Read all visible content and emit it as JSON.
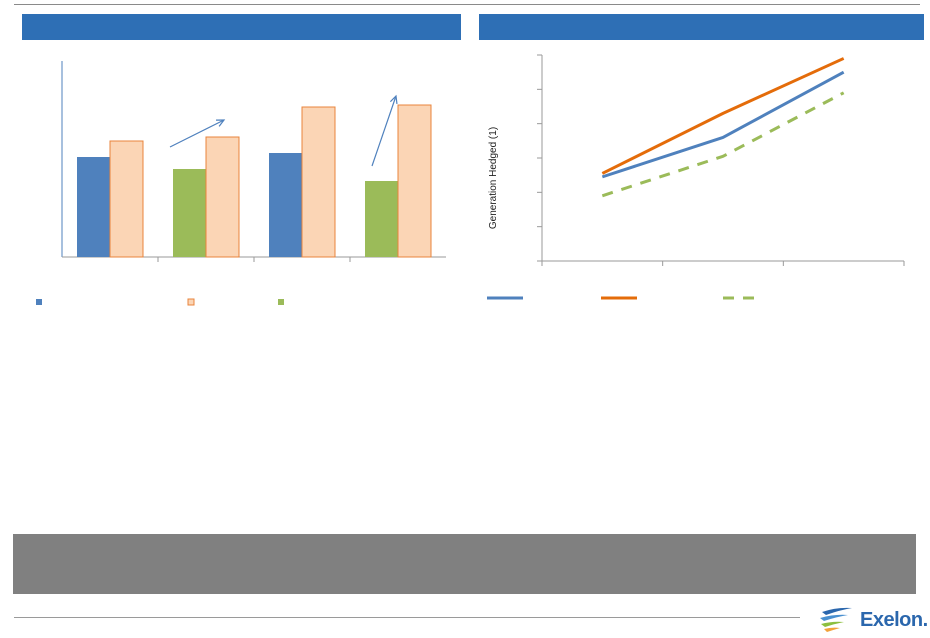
{
  "colors": {
    "header_band": "#2e6fb5",
    "blue_bar": "#4f81bd",
    "peach_bar": "#fbd5b5",
    "peach_border": "#e8843c",
    "green_bar": "#9bbb59",
    "line_blue": "#4f81bd",
    "line_orange": "#e46c0a",
    "line_green": "#9bbb59",
    "footer_box": "#808080"
  },
  "logo": {
    "text": "Exelon.",
    "icon": "exelon-flame-icon"
  },
  "chart_data": [
    {
      "type": "bar",
      "title": "",
      "ylim": [
        0,
        100
      ],
      "groups": [
        {
          "bars": [
            {
              "value": 50,
              "color_key": "blue_bar"
            },
            {
              "value": 58,
              "color_key": "peach_bar"
            }
          ]
        },
        {
          "bars": [
            {
              "value": 44,
              "color_key": "green_bar"
            },
            {
              "value": 60,
              "color_key": "peach_bar"
            }
          ]
        },
        {
          "bars": [
            {
              "value": 52,
              "color_key": "blue_bar"
            },
            {
              "value": 75,
              "color_key": "peach_bar"
            }
          ]
        },
        {
          "bars": [
            {
              "value": 38,
              "color_key": "green_bar"
            },
            {
              "value": 76,
              "color_key": "peach_bar"
            }
          ]
        }
      ],
      "arrows": [
        {
          "group": 1
        },
        {
          "group": 3
        }
      ],
      "legend": [
        {
          "label": "",
          "color_key": "blue_bar"
        },
        {
          "label": "",
          "color_key": "peach_bar"
        },
        {
          "label": "",
          "color_key": "green_bar"
        }
      ]
    },
    {
      "type": "line",
      "ylabel": "Generation Hedged (1)",
      "xlabel": "",
      "x": [
        1,
        2,
        3
      ],
      "xlim": [
        0.5,
        3.5
      ],
      "ylim": [
        0,
        6
      ],
      "series": [
        {
          "name": "",
          "values": [
            2.45,
            3.6,
            5.5
          ],
          "color_key": "line_blue",
          "dash": false
        },
        {
          "name": "",
          "values": [
            2.55,
            4.3,
            5.9
          ],
          "color_key": "line_orange",
          "dash": false
        },
        {
          "name": "",
          "values": [
            1.9,
            3.05,
            4.9
          ],
          "color_key": "line_green",
          "dash": true
        }
      ]
    }
  ]
}
